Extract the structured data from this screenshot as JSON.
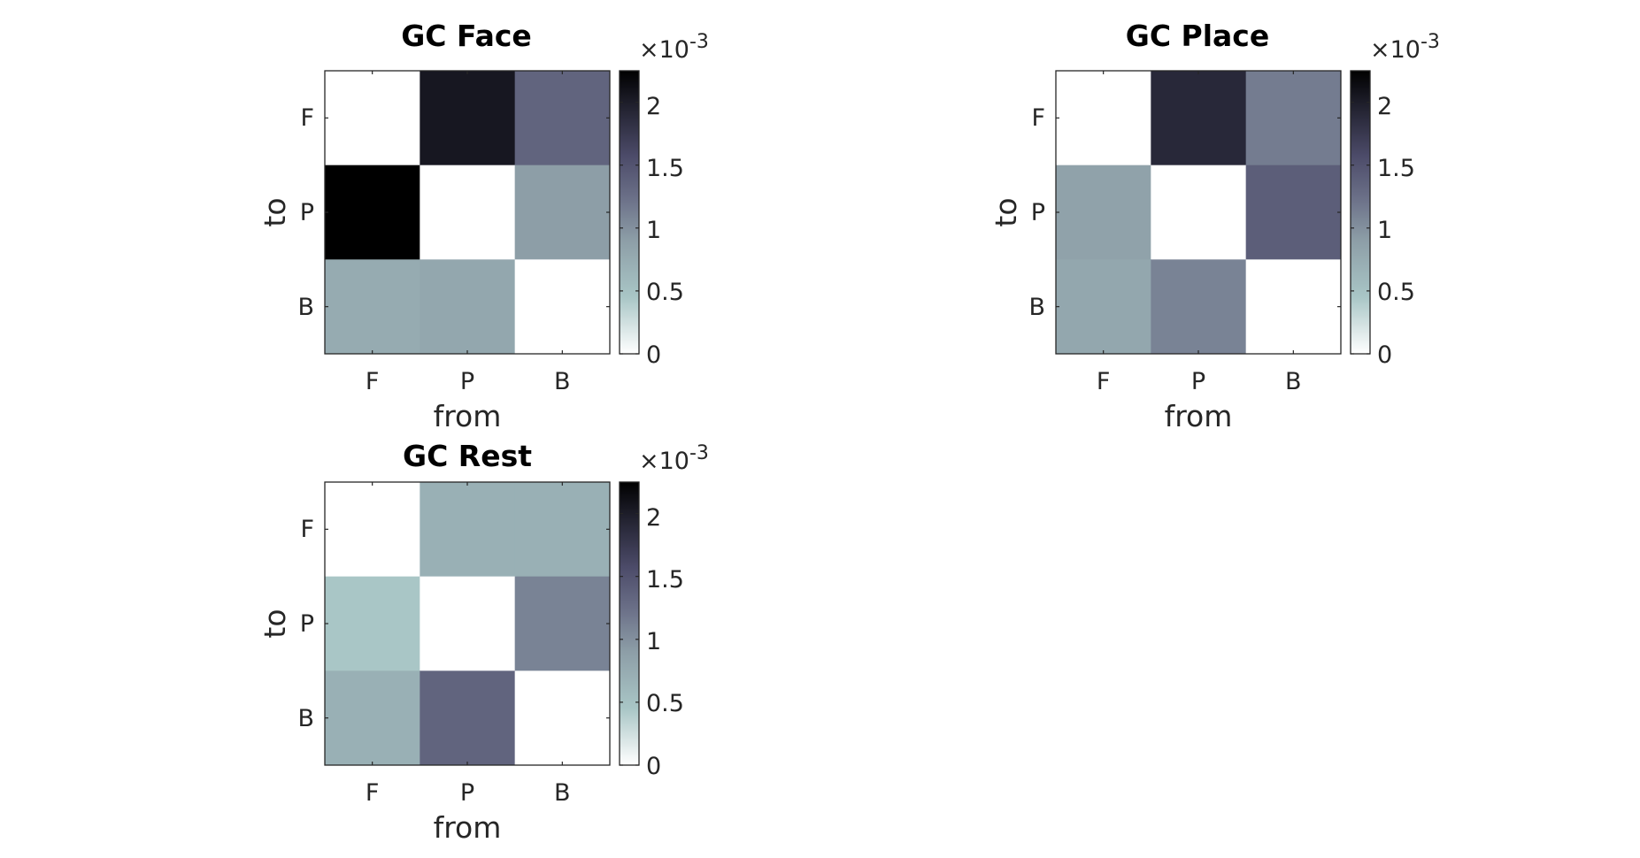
{
  "colormap": [
    "#ffffff",
    "#a9c6c6",
    "#8d9ea7",
    "#6b7088",
    "#4c4b69",
    "#222230",
    "#000000"
  ],
  "chart_data": [
    {
      "type": "heatmap",
      "title": "GC Face",
      "xlabel": "from",
      "ylabel": "to",
      "x_categories": [
        "F",
        "P",
        "B"
      ],
      "y_categories": [
        "F",
        "P",
        "B"
      ],
      "values": [
        [
          0.0,
          0.00205,
          0.00135
        ],
        [
          0.00225,
          0.0,
          0.0009
        ],
        [
          0.00075,
          0.0008,
          0.0
        ]
      ],
      "clim": [
        0,
        0.00225
      ],
      "colorbar": {
        "ticks": [
          "0",
          "0.5",
          "1",
          "1.5",
          "2"
        ],
        "multiplier_base": "×10",
        "multiplier_exp": "-3"
      }
    },
    {
      "type": "heatmap",
      "title": "GC Place",
      "xlabel": "from",
      "ylabel": "to",
      "x_categories": [
        "F",
        "P",
        "B"
      ],
      "y_categories": [
        "F",
        "P",
        "B"
      ],
      "values": [
        [
          0.0,
          0.0019,
          0.00115
        ],
        [
          0.00085,
          0.0,
          0.0014
        ],
        [
          0.0008,
          0.0011,
          0.0
        ]
      ],
      "clim": [
        0,
        0.00225
      ],
      "colorbar": {
        "ticks": [
          "0",
          "0.5",
          "1",
          "1.5",
          "2"
        ],
        "multiplier_base": "×10",
        "multiplier_exp": "-3"
      }
    },
    {
      "type": "heatmap",
      "title": "GC Rest",
      "xlabel": "from",
      "ylabel": "to",
      "x_categories": [
        "F",
        "P",
        "B"
      ],
      "y_categories": [
        "F",
        "P",
        "B"
      ],
      "values": [
        [
          0.0,
          0.0007,
          0.0007
        ],
        [
          0.00045,
          0.0,
          0.0011
        ],
        [
          0.0007,
          0.00135,
          0.0
        ]
      ],
      "clim": [
        0,
        0.00225
      ],
      "colorbar": {
        "ticks": [
          "0",
          "0.5",
          "1",
          "1.5",
          "2"
        ],
        "multiplier_base": "×10",
        "multiplier_exp": "-3"
      }
    }
  ]
}
